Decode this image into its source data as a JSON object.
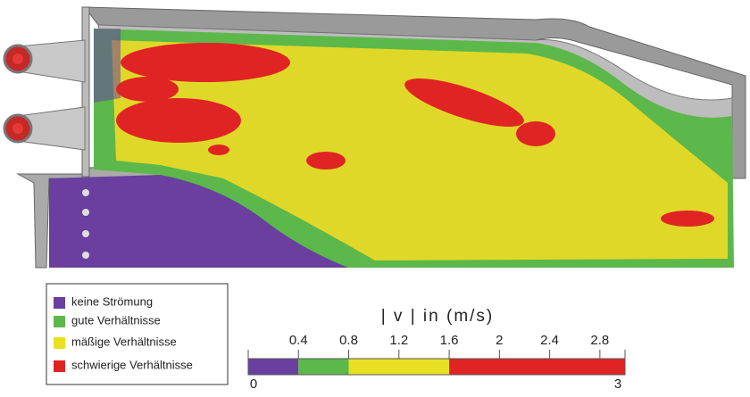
{
  "legend": {
    "items": [
      {
        "label": "keine Strömung",
        "color": "#6a3fa0"
      },
      {
        "label": "gute Verhältnisse",
        "color": "#5cb84a"
      },
      {
        "label": "mäßige Verhältnisse",
        "color": "#e8e020"
      },
      {
        "label": "schwierige Verhältnisse",
        "color": "#e02424"
      }
    ]
  },
  "colorbar": {
    "title": "| v |  in   (m/s)",
    "range": [
      0,
      3
    ],
    "ticks": [
      0.4,
      0.8,
      1.2,
      1.6,
      2,
      2.4,
      2.8
    ],
    "segments": [
      {
        "from": 0,
        "to": 0.4,
        "color": "#6a3fa0"
      },
      {
        "from": 0.4,
        "to": 0.8,
        "color": "#5cb84a"
      },
      {
        "from": 0.8,
        "to": 1.6,
        "color": "#e8e020"
      },
      {
        "from": 1.6,
        "to": 3,
        "color": "#e02424"
      }
    ]
  }
}
